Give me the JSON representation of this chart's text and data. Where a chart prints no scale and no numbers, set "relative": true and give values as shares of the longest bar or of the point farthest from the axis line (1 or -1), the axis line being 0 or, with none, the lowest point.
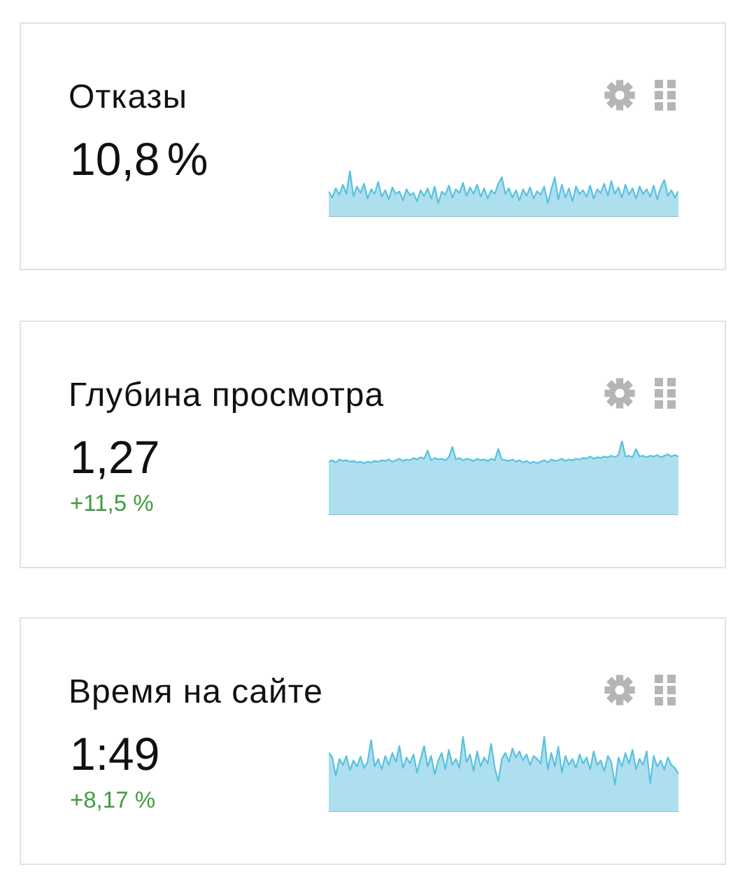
{
  "chart_data": [
    {
      "type": "area",
      "title": "Отказы",
      "subtitle": "10,8 %",
      "relative": true,
      "color": "#5bc0de",
      "categories": [
        null,
        null,
        null,
        null,
        null,
        null,
        null,
        null,
        null,
        null,
        null,
        null,
        null,
        null,
        null,
        null,
        null,
        null,
        null,
        null,
        null,
        null,
        null,
        null,
        null,
        null,
        null,
        null,
        null,
        null,
        null,
        null,
        null,
        null,
        null,
        null,
        null,
        null,
        null,
        null,
        null,
        null,
        null,
        null,
        null,
        null,
        null,
        null,
        null,
        null,
        null,
        null,
        null,
        null,
        null,
        null,
        null,
        null,
        null,
        null,
        null,
        null,
        null,
        null,
        null,
        null,
        null,
        null,
        null,
        null,
        null,
        null,
        null,
        null,
        null,
        null,
        null,
        null,
        null,
        null,
        null,
        null,
        null,
        null,
        null,
        null,
        null,
        null,
        null,
        null,
        null,
        null,
        null,
        null,
        null,
        null,
        null,
        null,
        null,
        null
      ],
      "values": [
        0.55,
        0.42,
        0.62,
        0.48,
        0.7,
        0.5,
        1.0,
        0.45,
        0.66,
        0.52,
        0.72,
        0.4,
        0.6,
        0.5,
        0.76,
        0.44,
        0.58,
        0.38,
        0.64,
        0.5,
        0.55,
        0.36,
        0.6,
        0.47,
        0.52,
        0.34,
        0.58,
        0.45,
        0.62,
        0.4,
        0.66,
        0.3,
        0.55,
        0.48,
        0.68,
        0.42,
        0.6,
        0.52,
        0.74,
        0.46,
        0.64,
        0.5,
        0.7,
        0.44,
        0.62,
        0.4,
        0.58,
        0.5,
        0.72,
        0.86,
        0.5,
        0.62,
        0.42,
        0.58,
        0.36,
        0.6,
        0.46,
        0.64,
        0.4,
        0.56,
        0.48,
        0.66,
        0.3,
        0.6,
        0.86,
        0.38,
        0.7,
        0.42,
        0.62,
        0.34,
        0.66,
        0.5,
        0.58,
        0.44,
        0.68,
        0.4,
        0.6,
        0.52,
        0.72,
        0.46,
        0.78,
        0.5,
        0.64,
        0.42,
        0.7,
        0.48,
        0.62,
        0.4,
        0.66,
        0.5,
        0.6,
        0.44,
        0.68,
        0.38,
        0.64,
        0.8,
        0.46,
        0.58,
        0.42,
        0.56
      ]
    },
    {
      "type": "area",
      "title": "Глубина просмотра",
      "subtitle": "1,27",
      "annotations": [
        "+11,5 %"
      ],
      "relative": true,
      "color": "#5bc0de",
      "categories": [
        null,
        null,
        null,
        null,
        null,
        null,
        null,
        null,
        null,
        null,
        null,
        null,
        null,
        null,
        null,
        null,
        null,
        null,
        null,
        null,
        null,
        null,
        null,
        null,
        null,
        null,
        null,
        null,
        null,
        null,
        null,
        null,
        null,
        null,
        null,
        null,
        null,
        null,
        null,
        null,
        null,
        null,
        null,
        null,
        null,
        null,
        null,
        null,
        null,
        null,
        null,
        null,
        null,
        null,
        null,
        null,
        null,
        null,
        null,
        null,
        null,
        null,
        null,
        null,
        null,
        null,
        null,
        null,
        null,
        null,
        null,
        null,
        null,
        null,
        null,
        null,
        null,
        null,
        null,
        null,
        null,
        null,
        null,
        null,
        null,
        null,
        null,
        null,
        null,
        null,
        null,
        null,
        null,
        null,
        null,
        null,
        null,
        null,
        null,
        null
      ],
      "values": [
        0.72,
        0.74,
        0.71,
        0.75,
        0.73,
        0.74,
        0.72,
        0.73,
        0.71,
        0.72,
        0.7,
        0.72,
        0.71,
        0.73,
        0.72,
        0.74,
        0.73,
        0.75,
        0.72,
        0.74,
        0.76,
        0.73,
        0.75,
        0.74,
        0.77,
        0.75,
        0.78,
        0.76,
        0.87,
        0.74,
        0.77,
        0.75,
        0.76,
        0.74,
        0.78,
        0.92,
        0.75,
        0.77,
        0.74,
        0.76,
        0.75,
        0.73,
        0.76,
        0.74,
        0.75,
        0.73,
        0.76,
        0.74,
        0.89,
        0.75,
        0.74,
        0.73,
        0.75,
        0.72,
        0.74,
        0.71,
        0.73,
        0.7,
        0.72,
        0.7,
        0.72,
        0.74,
        0.71,
        0.75,
        0.73,
        0.74,
        0.76,
        0.73,
        0.75,
        0.74,
        0.76,
        0.75,
        0.77,
        0.76,
        0.79,
        0.76,
        0.78,
        0.77,
        0.79,
        0.78,
        0.8,
        0.78,
        0.81,
        1.0,
        0.79,
        0.8,
        0.78,
        0.89,
        0.79,
        0.8,
        0.78,
        0.8,
        0.79,
        0.81,
        0.78,
        0.8,
        0.82,
        0.79,
        0.81,
        0.79
      ]
    },
    {
      "type": "area",
      "title": "Время на сайте",
      "subtitle": "1:49",
      "annotations": [
        "+8,17 %"
      ],
      "relative": true,
      "color": "#5bc0de",
      "categories": [
        null,
        null,
        null,
        null,
        null,
        null,
        null,
        null,
        null,
        null,
        null,
        null,
        null,
        null,
        null,
        null,
        null,
        null,
        null,
        null,
        null,
        null,
        null,
        null,
        null,
        null,
        null,
        null,
        null,
        null,
        null,
        null,
        null,
        null,
        null,
        null,
        null,
        null,
        null,
        null,
        null,
        null,
        null,
        null,
        null,
        null,
        null,
        null,
        null,
        null,
        null,
        null,
        null,
        null,
        null,
        null,
        null,
        null,
        null,
        null,
        null,
        null,
        null,
        null,
        null,
        null,
        null,
        null,
        null,
        null,
        null,
        null,
        null,
        null,
        null,
        null,
        null,
        null,
        null,
        null,
        null,
        null,
        null,
        null,
        null,
        null,
        null,
        null,
        null,
        null,
        null,
        null,
        null,
        null,
        null,
        null,
        null,
        null,
        null,
        null
      ],
      "values": [
        0.78,
        0.72,
        0.48,
        0.7,
        0.62,
        0.74,
        0.55,
        0.68,
        0.6,
        0.73,
        0.58,
        0.66,
        0.95,
        0.6,
        0.7,
        0.56,
        0.74,
        0.62,
        0.78,
        0.66,
        0.87,
        0.58,
        0.72,
        0.64,
        0.76,
        0.52,
        0.7,
        0.87,
        0.6,
        0.74,
        0.5,
        0.68,
        0.78,
        0.56,
        0.82,
        0.62,
        0.7,
        0.58,
        1.0,
        0.66,
        0.76,
        0.54,
        0.8,
        0.6,
        0.72,
        0.64,
        0.9,
        0.58,
        0.41,
        0.7,
        0.78,
        0.66,
        0.84,
        0.72,
        0.8,
        0.68,
        0.76,
        0.62,
        0.74,
        0.7,
        0.64,
        1.0,
        0.56,
        0.78,
        0.6,
        0.86,
        0.52,
        0.74,
        0.62,
        0.7,
        0.58,
        0.76,
        0.64,
        0.72,
        0.56,
        0.8,
        0.62,
        0.68,
        0.54,
        0.74,
        0.66,
        0.36,
        0.72,
        0.6,
        0.78,
        0.64,
        0.82,
        0.56,
        0.7,
        0.62,
        0.8,
        0.38,
        0.74,
        0.6,
        0.68,
        0.56,
        0.72,
        0.62,
        0.58,
        0.5
      ]
    }
  ]
}
